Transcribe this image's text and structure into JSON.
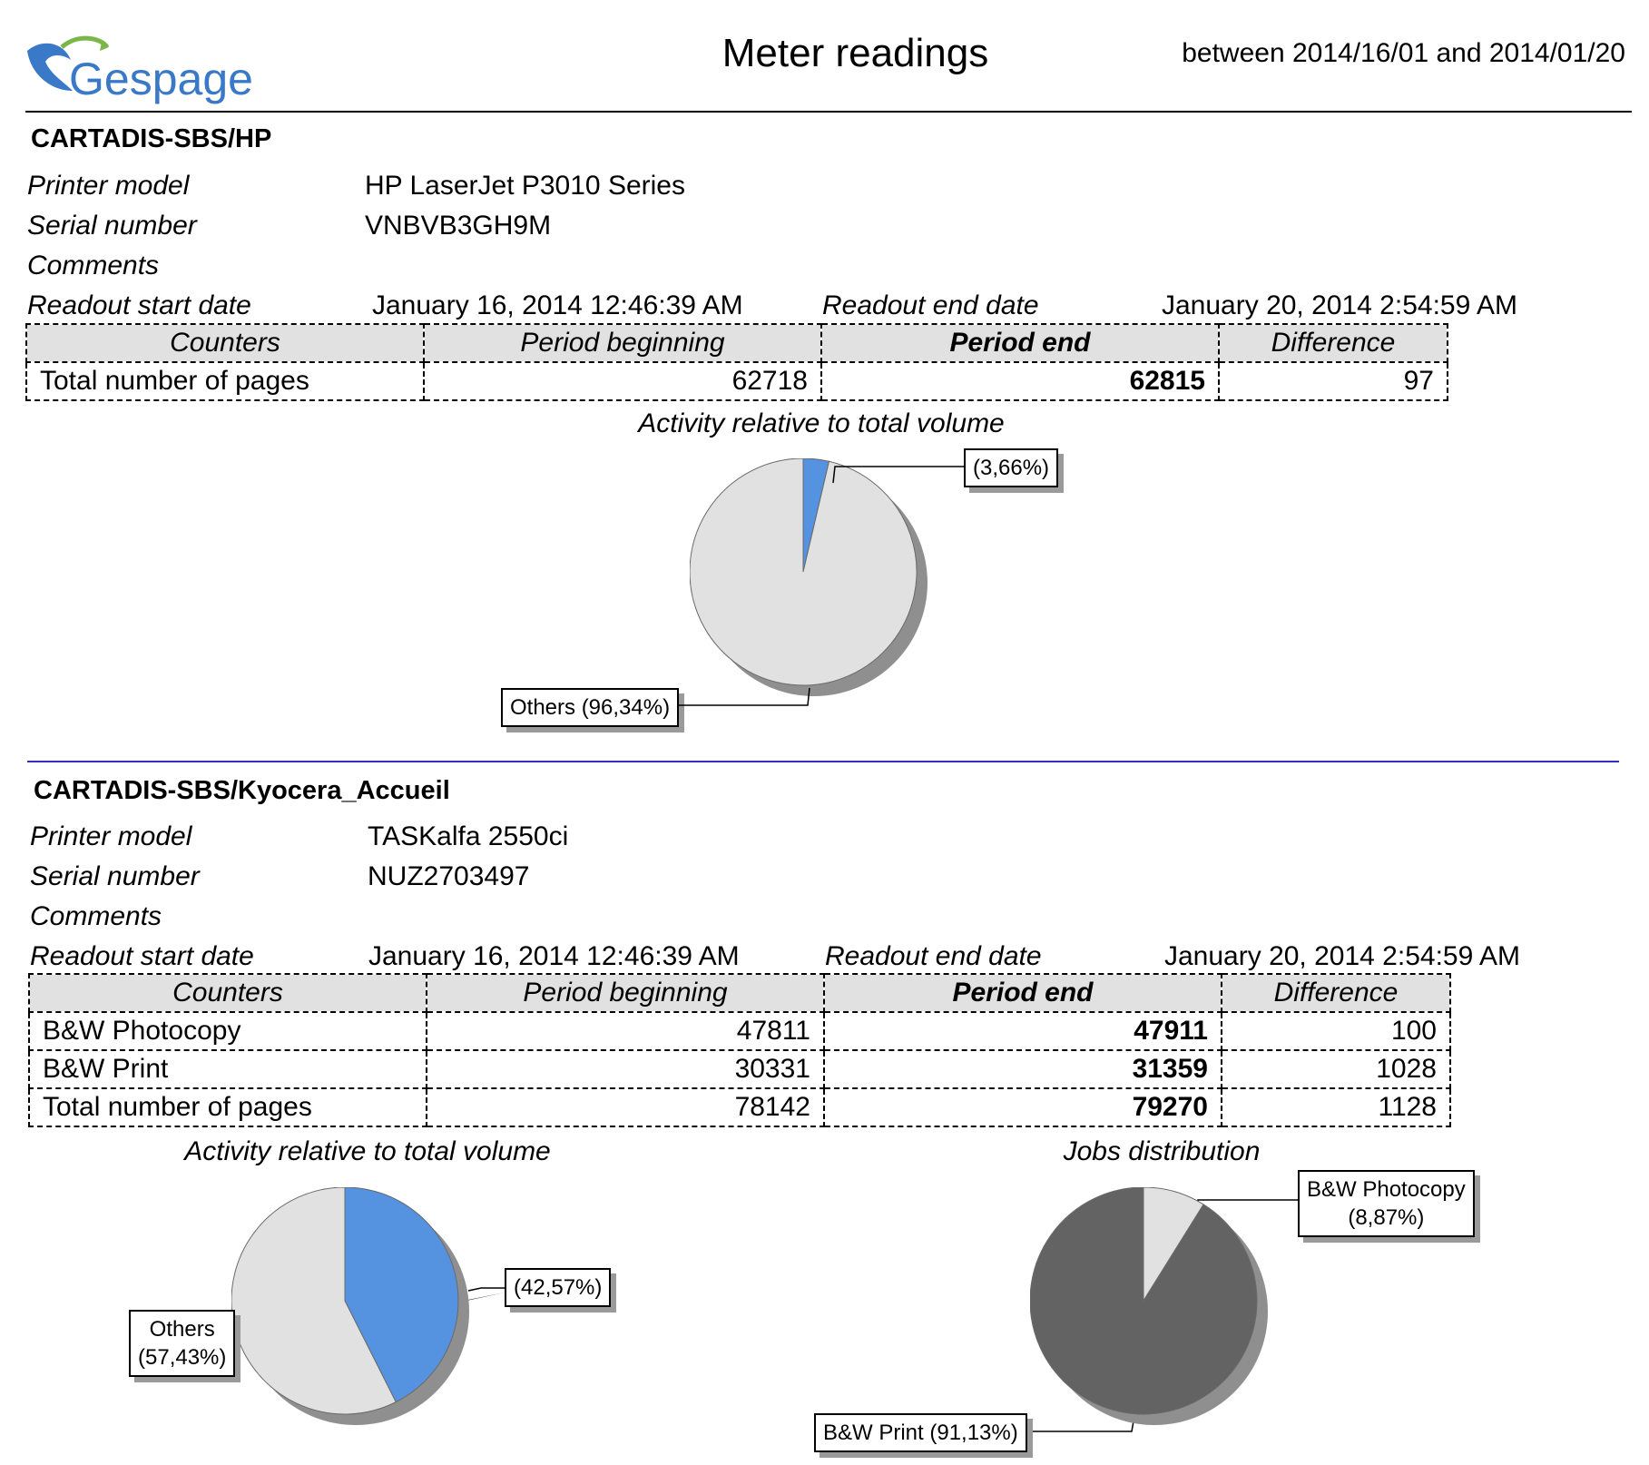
{
  "header": {
    "logo_text": "Gespage",
    "title": "Meter readings",
    "date_range": "between 2014/16/01 and 2014/01/20"
  },
  "labels": {
    "printer_model": "Printer model",
    "serial_number": "Serial number",
    "comments": "Comments",
    "readout_start": "Readout start date",
    "readout_end": "Readout end date"
  },
  "table_headers": [
    "Counters",
    "Period beginning",
    "Period end",
    "Difference"
  ],
  "printers": [
    {
      "name": "CARTADIS-SBS/HP",
      "model": "HP LaserJet P3010 Series",
      "serial": "VNBVB3GH9M",
      "comments": "",
      "start_date": "January 16, 2014 12:46:39 AM",
      "end_date": "January 20, 2014 2:54:59 AM",
      "rows": [
        {
          "counter": "Total number of pages",
          "begin": "62718",
          "end": "62815",
          "diff": "97"
        }
      ]
    },
    {
      "name": "CARTADIS-SBS/Kyocera_Accueil",
      "model": "TASKalfa 2550ci",
      "serial": "NUZ2703497",
      "comments": "",
      "start_date": "January 16, 2014 12:46:39 AM",
      "end_date": "January 20, 2014 2:54:59 AM",
      "rows": [
        {
          "counter": "B&W Photocopy",
          "begin": "47811",
          "end": "47911",
          "diff": "100"
        },
        {
          "counter": "B&W Print",
          "begin": "30331",
          "end": "31359",
          "diff": "1028"
        },
        {
          "counter": "Total number of pages",
          "begin": "78142",
          "end": "79270",
          "diff": "1128"
        }
      ]
    }
  ],
  "chart_data": [
    {
      "type": "pie",
      "title": "Activity relative to total volume",
      "categories": [
        "",
        "Others"
      ],
      "values": [
        3.66,
        96.34
      ],
      "labels": [
        "(3,66%)",
        "Others (96,34%)"
      ],
      "colors": [
        "#5592e0",
        "#e1e1e1"
      ]
    },
    {
      "type": "pie",
      "title": "Activity relative to total volume",
      "categories": [
        "",
        "Others"
      ],
      "values": [
        42.57,
        57.43
      ],
      "labels": [
        "(42,57%)",
        "Others\n(57,43%)"
      ],
      "colors": [
        "#5592e0",
        "#e1e1e1"
      ]
    },
    {
      "type": "pie",
      "title": "Jobs distribution",
      "categories": [
        "B&W Photocopy",
        "B&W Print"
      ],
      "values": [
        8.87,
        91.13
      ],
      "labels": [
        "B&W Photocopy\n(8,87%)",
        "B&W Print (91,13%)"
      ],
      "colors": [
        "#e1e1e1",
        "#636363"
      ]
    }
  ]
}
